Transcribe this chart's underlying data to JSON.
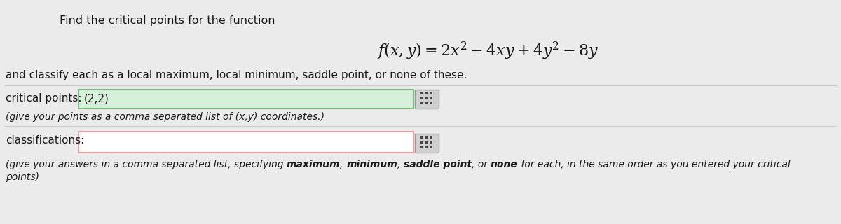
{
  "bg_color": "#ebebeb",
  "content_bg": "#ebebeb",
  "title_text": "Find the critical points for the function",
  "formula_latex": "$f(x, y) = 2x^2 - 4xy + 4y^2 - 8y$",
  "subtitle_text": "and classify each as a local maximum, local minimum, saddle point, or none of these.",
  "label1": "critical points:",
  "value1": "(2,2)",
  "hint1": "(give your points as a comma separated list of (x,y) coordinates.)",
  "label2": "classifications:",
  "value2": "",
  "input_box1_face": "#d6f0da",
  "input_box1_edge": "#7fba84",
  "input_box2_face": "#ffffff",
  "input_box2_edge": "#e8a0a0",
  "btn_face": "#d0d0d0",
  "btn_edge": "#999999",
  "grid_color": "#444444",
  "text_color": "#1a1a1a",
  "hint2_line1_parts": [
    {
      "text": "(give your answers in a comma separated list, specifying ",
      "bold": false
    },
    {
      "text": "maximum",
      "bold": true
    },
    {
      "text": ", ",
      "bold": false
    },
    {
      "text": "minimum",
      "bold": true
    },
    {
      "text": ", ",
      "bold": false
    },
    {
      "text": "saddle point",
      "bold": true
    },
    {
      "text": ", or ",
      "bold": false
    },
    {
      "text": "none",
      "bold": true
    },
    {
      "text": " for each, in the same order as you entered your critical",
      "bold": false
    }
  ],
  "hint2_line2_parts": [
    {
      "text": "points)",
      "bold": false
    }
  ]
}
